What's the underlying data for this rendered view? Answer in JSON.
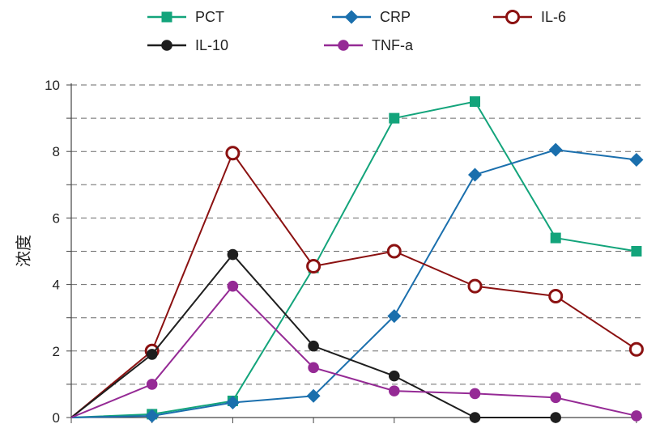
{
  "chart_data": {
    "type": "line",
    "title": "",
    "xlabel": "",
    "ylabel": "浓度",
    "ylim": [
      0,
      10
    ],
    "yticks": [
      0,
      2,
      4,
      6,
      8,
      10
    ],
    "grid": "horizontal-dashed",
    "legend": "top",
    "x": [
      0,
      1,
      2,
      3,
      4,
      5,
      6,
      7
    ],
    "series": [
      {
        "name": "PCT",
        "color": "#13a47b",
        "marker": "square",
        "values": [
          0,
          0.1,
          0.5,
          4.5,
          9.0,
          9.5,
          5.4,
          5.0
        ]
      },
      {
        "name": "CRP",
        "color": "#1a6fad",
        "marker": "diamond",
        "values": [
          0,
          0.05,
          0.45,
          0.65,
          3.05,
          7.3,
          8.05,
          7.75
        ]
      },
      {
        "name": "IL-6",
        "color": "#8b1111",
        "marker": "open-circle",
        "values": [
          0,
          2.0,
          7.95,
          4.55,
          5.0,
          3.95,
          3.65,
          2.05
        ]
      },
      {
        "name": "IL-10",
        "color": "#1e1e1e",
        "marker": "circle",
        "values": [
          0,
          1.9,
          4.9,
          2.15,
          1.25,
          0,
          0,
          null
        ]
      },
      {
        "name": "TNF-a",
        "color": "#952a95",
        "marker": "circle",
        "values": [
          0,
          1.0,
          3.95,
          1.5,
          0.8,
          0.72,
          0.6,
          0.05
        ]
      }
    ]
  }
}
